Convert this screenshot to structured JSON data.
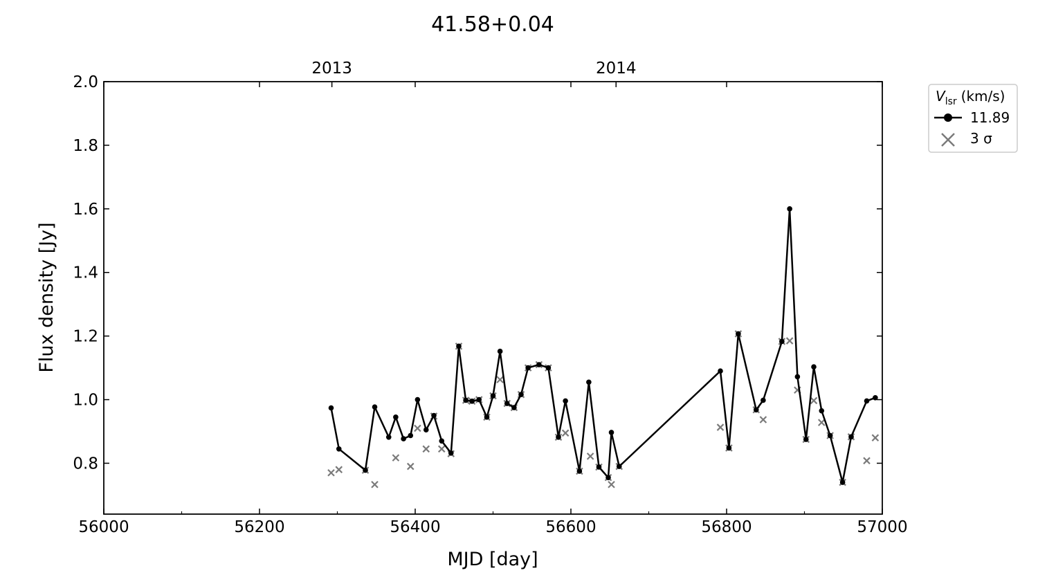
{
  "chart_data": {
    "type": "line",
    "title": "41.58+0.04",
    "xlabel": "MJD [day]",
    "ylabel": "Flux density [Jy]",
    "xlim": [
      56000,
      57000
    ],
    "ylim": [
      0.64,
      2.0
    ],
    "x_ticks": [
      56000,
      56200,
      56400,
      56600,
      56800,
      57000
    ],
    "x_tick_labels": [
      "56000",
      "56200",
      "56400",
      "56600",
      "56800",
      "57000"
    ],
    "y_ticks": [
      0.8,
      1.0,
      1.2,
      1.4,
      1.6,
      1.8,
      2.0
    ],
    "y_tick_labels": [
      "0.8",
      "1.0",
      "1.2",
      "1.4",
      "1.6",
      "1.8",
      "2.0"
    ],
    "top_axis": {
      "ticks": [
        56293,
        56658
      ],
      "labels": [
        "2013",
        "2014"
      ]
    },
    "grid": false,
    "legend": {
      "title_main": "V",
      "title_sub": "lsr",
      "title_unit": "(km/s)",
      "placement": "outside-right-top",
      "entries": [
        {
          "label": "11.89",
          "marker": "dot-line"
        },
        {
          "label": "3 σ",
          "marker": "x"
        }
      ]
    },
    "colors": {
      "series": "#000000",
      "sigma": "#7a7a7a"
    },
    "series": [
      {
        "name": "11.89",
        "x": [
          56292,
          56302,
          56336,
          56348,
          56366,
          56375,
          56385,
          56394,
          56403,
          56414,
          56424,
          56434,
          56446,
          56456,
          56465,
          56473,
          56482,
          56492,
          56500,
          56509,
          56518,
          56527,
          56536,
          56545,
          56559,
          56571,
          56584,
          56593,
          56611,
          56623,
          56636,
          56648,
          56652,
          56662,
          56792,
          56803,
          56815,
          56838,
          56847,
          56871,
          56881,
          56891,
          56902,
          56912,
          56922,
          56933,
          56949,
          56960,
          56980,
          56991
        ],
        "y": [
          0.974,
          0.845,
          0.778,
          0.977,
          0.882,
          0.945,
          0.877,
          0.887,
          1.0,
          0.905,
          0.95,
          0.87,
          0.832,
          1.168,
          0.998,
          0.995,
          1.0,
          0.945,
          1.012,
          1.152,
          0.988,
          0.975,
          1.016,
          1.1,
          1.11,
          1.1,
          0.882,
          0.996,
          0.775,
          1.055,
          0.788,
          0.755,
          0.897,
          0.79,
          1.09,
          0.848,
          1.207,
          0.968,
          0.998,
          1.183,
          1.6,
          1.072,
          0.875,
          1.103,
          0.965,
          0.887,
          0.74,
          0.883,
          0.996,
          1.006
        ]
      },
      {
        "name": "3 σ",
        "x": [
          56292,
          56302,
          56336,
          56348,
          56375,
          56394,
          56403,
          56414,
          56424,
          56434,
          56446,
          56456,
          56465,
          56473,
          56482,
          56492,
          56500,
          56509,
          56518,
          56527,
          56536,
          56545,
          56559,
          56571,
          56584,
          56593,
          56611,
          56625,
          56636,
          56648,
          56652,
          56662,
          56792,
          56803,
          56815,
          56838,
          56847,
          56871,
          56881,
          56891,
          56902,
          56912,
          56922,
          56933,
          56949,
          56960,
          56980,
          56991
        ],
        "y": [
          0.77,
          0.78,
          0.778,
          0.733,
          0.817,
          0.79,
          0.91,
          0.845,
          0.948,
          0.845,
          0.83,
          1.168,
          0.998,
          0.995,
          1.0,
          0.945,
          1.012,
          1.063,
          0.988,
          0.975,
          1.016,
          1.1,
          1.11,
          1.1,
          0.882,
          0.895,
          0.775,
          0.822,
          0.788,
          0.755,
          0.733,
          0.79,
          0.913,
          0.848,
          1.207,
          0.968,
          0.937,
          1.183,
          1.185,
          1.03,
          0.875,
          0.997,
          0.928,
          0.887,
          0.74,
          0.883,
          0.808,
          0.88
        ]
      }
    ]
  }
}
